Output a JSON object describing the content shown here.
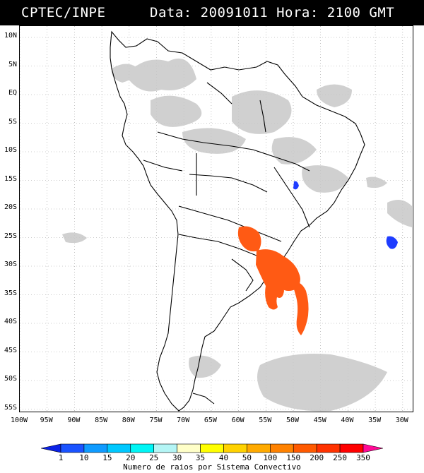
{
  "header": {
    "title": "CPTEC/INPE",
    "datetime": "Data: 20091011 Hora: 2100 GMT"
  },
  "map": {
    "lat_labels": [
      "10N",
      "5N",
      "EQ",
      "5S",
      "10S",
      "15S",
      "20S",
      "25S",
      "30S",
      "35S",
      "40S",
      "45S",
      "50S",
      "55S"
    ],
    "lon_labels": [
      "100W",
      "95W",
      "90W",
      "85W",
      "80W",
      "75W",
      "70W",
      "65W",
      "60W",
      "55W",
      "50W",
      "45W",
      "40W",
      "35W",
      "30W"
    ],
    "cloud_color": "#c8c8c8",
    "convective_color": "#ff5a14",
    "small_system_color": "#1e3cff"
  },
  "colorbar": {
    "labels": [
      "1",
      "10",
      "15",
      "20",
      "25",
      "30",
      "35",
      "40",
      "50",
      "100",
      "150",
      "200",
      "250",
      "350"
    ],
    "colors": [
      "#0b22e6",
      "#1a53ff",
      "#0f9bff",
      "#00c8ff",
      "#00f5f5",
      "#b4f5f5",
      "#ffffc8",
      "#ffff00",
      "#ffd200",
      "#ffaa00",
      "#ff8200",
      "#ff5a00",
      "#ff3200",
      "#ff0000",
      "#ff0a96"
    ],
    "caption": "Numero de raios por Sistema Convectivo"
  }
}
